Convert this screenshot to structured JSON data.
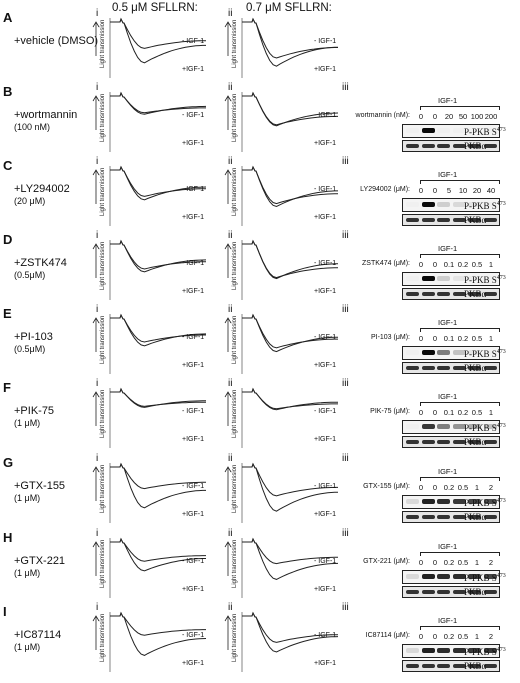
{
  "header": {
    "col_A": "A",
    "col_i_label": "i",
    "col_i_title": "0.5 μM SFLLRN:",
    "col_ii_label": "ii",
    "col_ii_title": "0.7 μM SFLLRN:"
  },
  "trace_labels": {
    "minus": "- IGF-1",
    "plus": "+IGF-1",
    "y_axis": "Light transmission"
  },
  "blot_common": {
    "roman_iii": "iii",
    "igf_header": "IGF-1",
    "ppkb": "P-PKB S",
    "ppkb_sup": "473",
    "pkb": "PKBα"
  },
  "rows": [
    {
      "letter": "A",
      "treatment": "+vehicle (DMSO)",
      "dose_label": "",
      "has_blot": false,
      "blot_title": "",
      "doses": []
    },
    {
      "letter": "B",
      "treatment": "+wortmannin",
      "dose_label": "(100 nM)",
      "has_blot": true,
      "blot_title": "wortmannin (nM):",
      "doses": [
        "0",
        "0",
        "20",
        "50",
        "100",
        "200"
      ]
    },
    {
      "letter": "C",
      "treatment": "+LY294002",
      "dose_label": "(20 μM)",
      "has_blot": true,
      "blot_title": "LY294002 (μM):",
      "doses": [
        "0",
        "0",
        "5",
        "10",
        "20",
        "40"
      ]
    },
    {
      "letter": "D",
      "treatment": "+ZSTK474",
      "dose_label": "(0.5μM)",
      "has_blot": true,
      "blot_title": "ZSTK474 (μM):",
      "doses": [
        "0",
        "0",
        "0.1",
        "0.2",
        "0.5",
        "1"
      ]
    },
    {
      "letter": "E",
      "treatment": "+PI-103",
      "dose_label": "(0.5μM)",
      "has_blot": true,
      "blot_title": "PI-103 (μM):",
      "doses": [
        "0",
        "0",
        "0.1",
        "0.2",
        "0.5",
        "1"
      ]
    },
    {
      "letter": "F",
      "treatment": "+PIK-75",
      "dose_label": "(1 μM)",
      "has_blot": true,
      "blot_title": "PIK-75 (μM):",
      "doses": [
        "0",
        "0",
        "0.1",
        "0.2",
        "0.5",
        "1"
      ]
    },
    {
      "letter": "G",
      "treatment": "+GTX-155",
      "dose_label": "(1 μM)",
      "has_blot": true,
      "blot_title": "GTX-155 (μM):",
      "doses": [
        "0",
        "0",
        "0.2",
        "0.5",
        "1",
        "2"
      ]
    },
    {
      "letter": "H",
      "treatment": "+GTX-221",
      "dose_label": "(1 μM)",
      "has_blot": true,
      "blot_title": "GTX-221 (μM):",
      "doses": [
        "0",
        "0",
        "0.2",
        "0.5",
        "1",
        "2"
      ]
    },
    {
      "letter": "I",
      "treatment": "+IC87114",
      "dose_label": "(1 μM)",
      "has_blot": true,
      "blot_title": "IC87114 (μM):",
      "doses": [
        "0",
        "0",
        "0.2",
        "0.5",
        "1",
        "2"
      ]
    }
  ]
}
